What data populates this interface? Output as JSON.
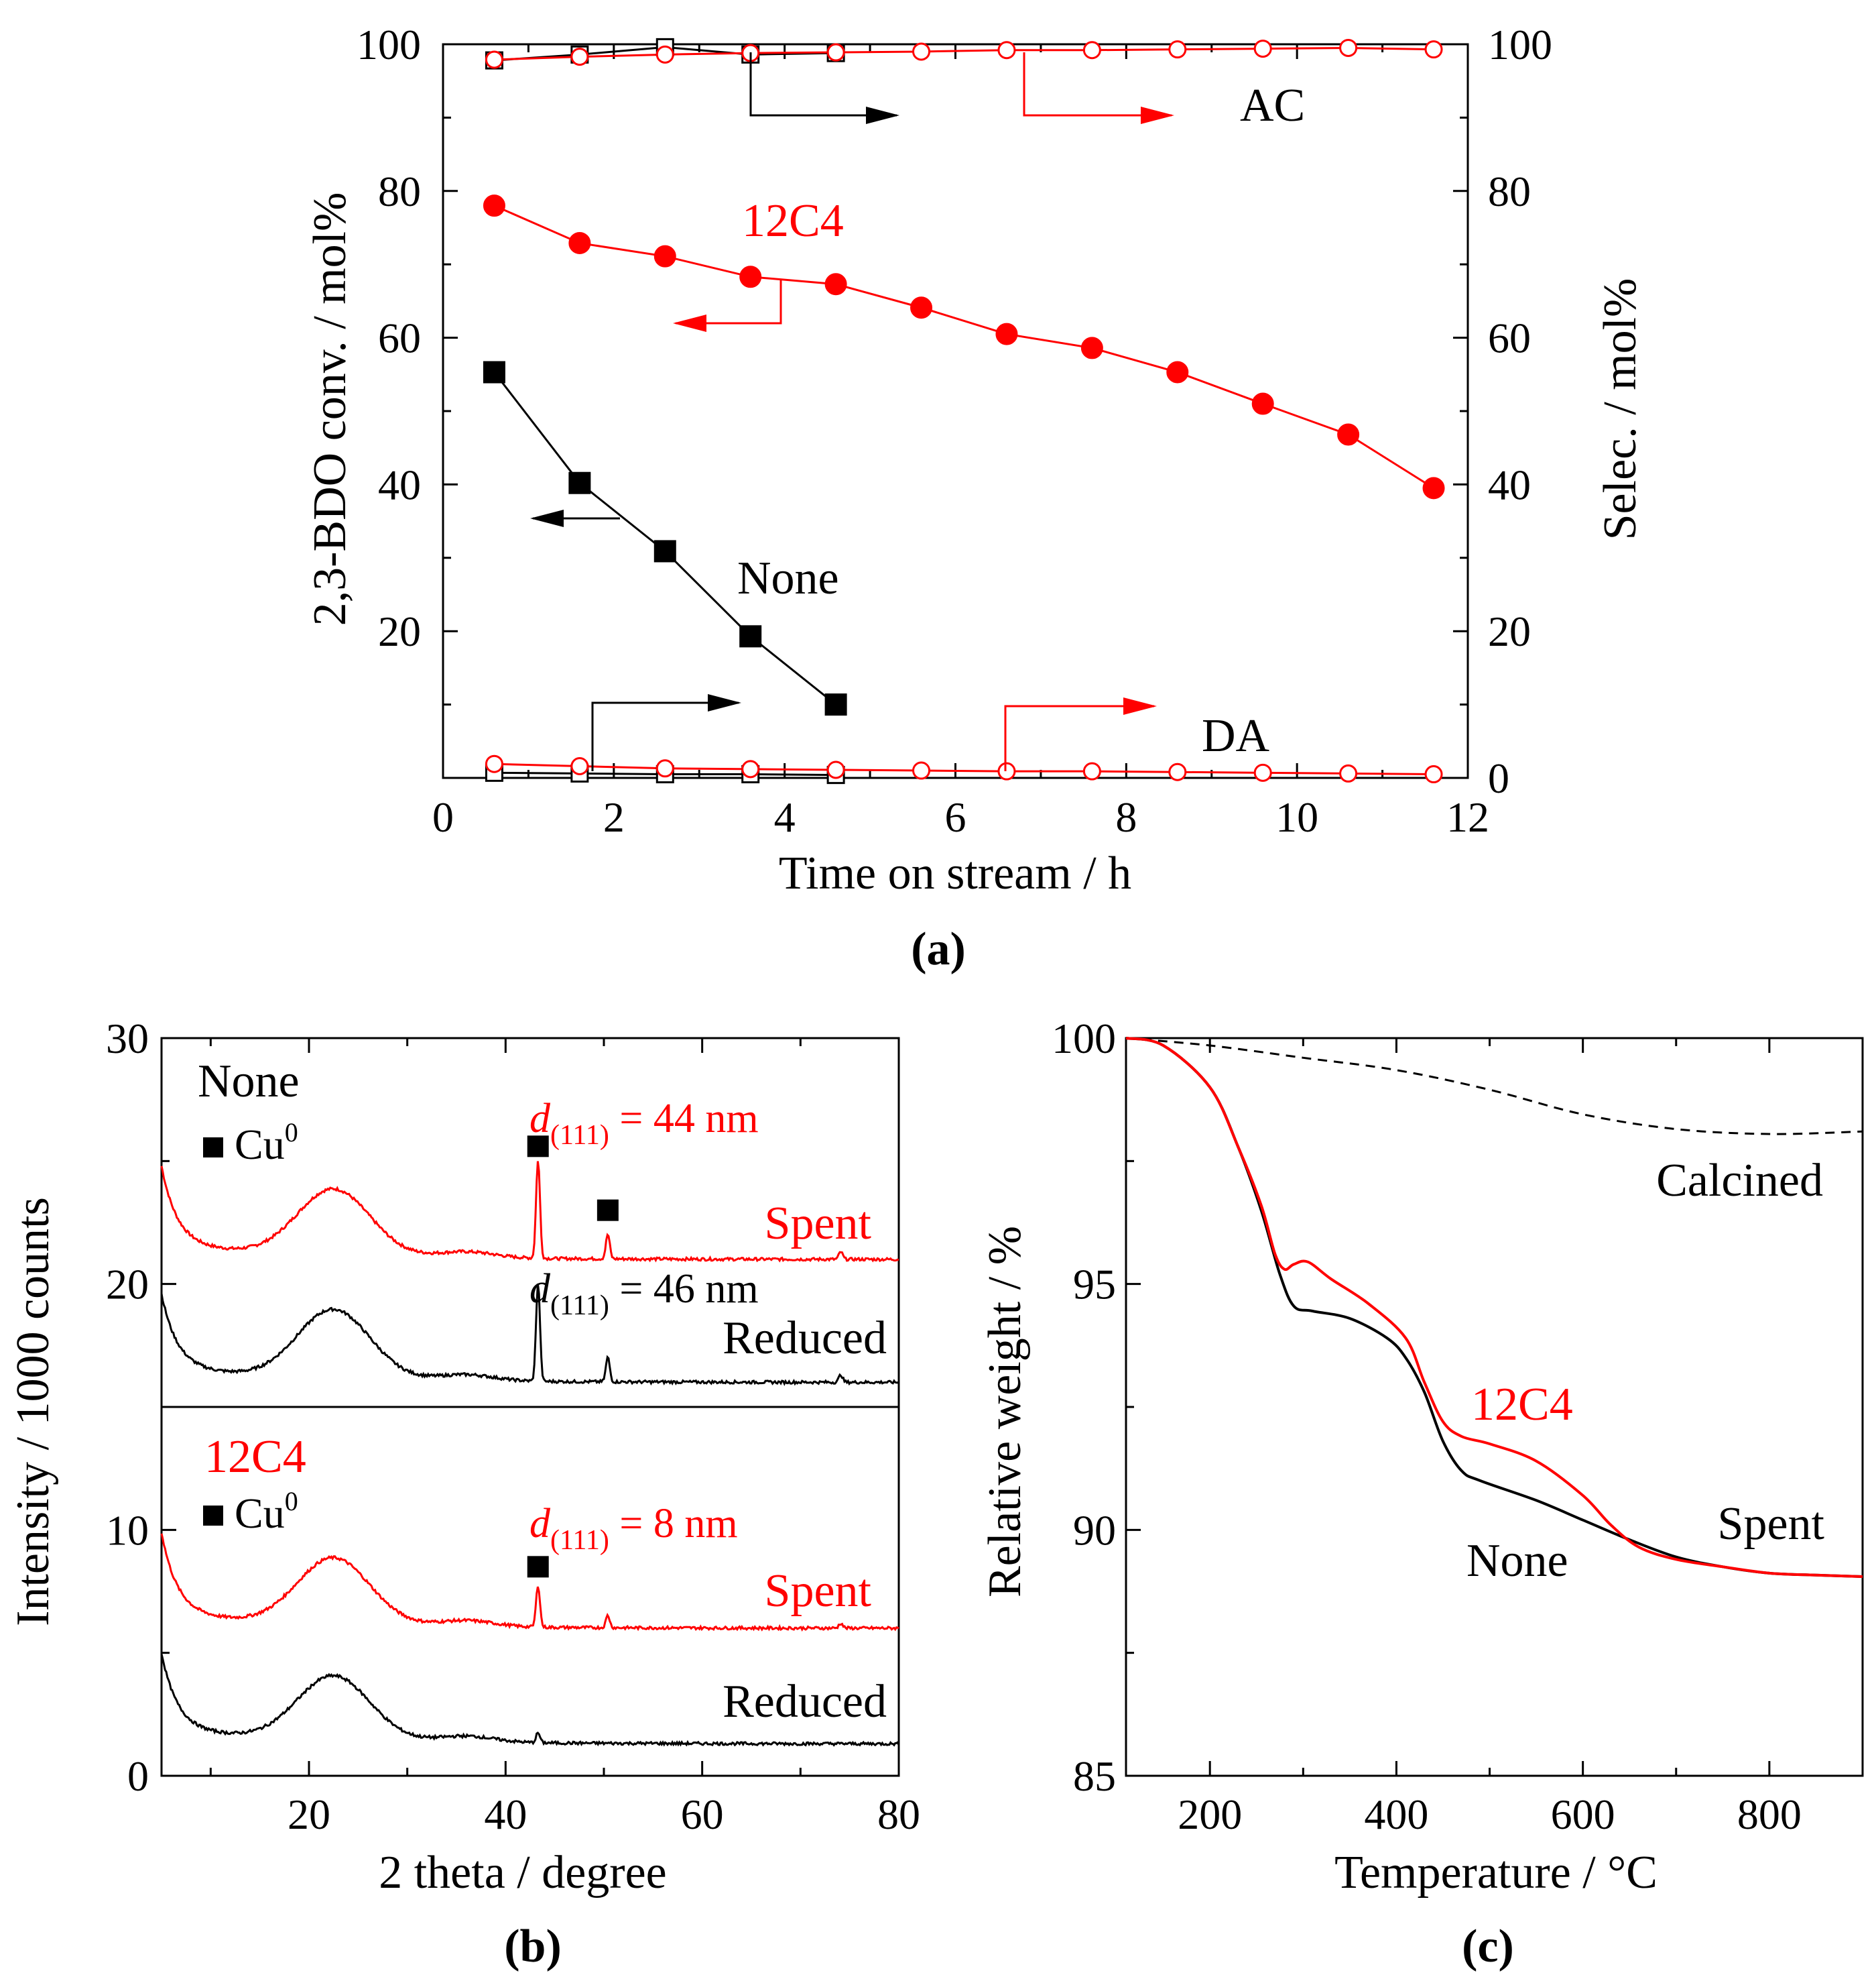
{
  "colors": {
    "black": "#000000",
    "red": "#ff0000"
  },
  "chart_data": [
    {
      "id": "a",
      "type": "line",
      "caption": "(a)",
      "xlabel": "Time on stream / h",
      "ylabel": "2,3-BDO conv. / mol%",
      "y2label": "Selec. / mol%",
      "xlim": [
        0,
        12
      ],
      "ylim": [
        0,
        100
      ],
      "y2lim": [
        0,
        100
      ],
      "xticks": [
        "0",
        "2",
        "4",
        "6",
        "8",
        "10",
        "12"
      ],
      "yticks": [
        "20",
        "40",
        "60",
        "80",
        "100"
      ],
      "y2ticks": [
        "0",
        "20",
        "40",
        "60",
        "80",
        "100"
      ],
      "labels": {
        "ac": "AC",
        "c12": "12C4",
        "none": "None",
        "da": "DA"
      },
      "series": [
        {
          "name": "None conversion",
          "color": "#000000",
          "marker": "square-filled",
          "x": [
            0.6,
            1.6,
            2.6,
            3.6,
            4.6
          ],
          "y": [
            55.3,
            40.2,
            30.9,
            19.3,
            10.0
          ]
        },
        {
          "name": "None AC selectivity",
          "color": "#000000",
          "marker": "square-open",
          "x": [
            0.6,
            1.6,
            2.6,
            3.6,
            4.6
          ],
          "y": [
            97.8,
            98.6,
            99.6,
            98.6,
            98.8
          ]
        },
        {
          "name": "None DA selectivity",
          "color": "#000000",
          "marker": "square-open",
          "x": [
            0.6,
            1.6,
            2.6,
            3.6,
            4.6
          ],
          "y": [
            0.7,
            0.6,
            0.5,
            0.5,
            0.4
          ]
        },
        {
          "name": "12C4 conversion",
          "color": "#ff0000",
          "marker": "circle-filled",
          "x": [
            0.6,
            1.6,
            2.6,
            3.6,
            4.6,
            5.6,
            6.6,
            7.6,
            8.6,
            9.6,
            10.6,
            11.6
          ],
          "y": [
            78.0,
            72.9,
            71.1,
            68.3,
            67.3,
            64.1,
            60.5,
            58.6,
            55.3,
            51.0,
            46.8,
            39.5
          ]
        },
        {
          "name": "12C4 AC selectivity",
          "color": "#ff0000",
          "marker": "circle-open",
          "x": [
            0.6,
            1.6,
            2.6,
            3.6,
            4.6,
            5.6,
            6.6,
            7.6,
            8.6,
            9.6,
            10.6,
            11.6
          ],
          "y": [
            97.9,
            98.3,
            98.6,
            98.8,
            98.9,
            99.0,
            99.2,
            99.2,
            99.3,
            99.4,
            99.5,
            99.3
          ]
        },
        {
          "name": "12C4 DA selectivity",
          "color": "#ff0000",
          "marker": "circle-open",
          "x": [
            0.6,
            1.6,
            2.6,
            3.6,
            4.6,
            5.6,
            6.6,
            7.6,
            8.6,
            9.6,
            10.6,
            11.6
          ],
          "y": [
            1.9,
            1.6,
            1.3,
            1.2,
            1.1,
            1.0,
            0.9,
            0.9,
            0.8,
            0.7,
            0.6,
            0.5
          ]
        }
      ]
    },
    {
      "id": "b",
      "type": "line",
      "caption": "(b)",
      "xlabel": "2 theta / degree",
      "ylabel": "Intensity / 1000 counts",
      "xlim": [
        5,
        80
      ],
      "ylim": [
        0,
        30
      ],
      "xticks": [
        "20",
        "40",
        "60",
        "80"
      ],
      "yticks": [
        "0",
        "10",
        "20",
        "30"
      ],
      "labels": {
        "none": "None",
        "c12": "12C4",
        "cu": "Cu",
        "cu_sup": "0",
        "d_italic": "d",
        "d_sub": "(111)",
        "d_none_spent": " = 44 nm",
        "d_none_reduced": " = 46 nm",
        "d_12c4_spent": " = 8 nm",
        "spent": "Spent",
        "reduced": "Reduced"
      },
      "series": [
        {
          "name": "None Spent",
          "color": "#ff0000",
          "baseline": 21.0,
          "start": 24.8,
          "hump": 24.1,
          "peaks": [
            [
              43.3,
              25.0
            ],
            [
              50.4,
              22.0
            ],
            [
              74.1,
              21.3
            ]
          ]
        },
        {
          "name": "None Reduced",
          "color": "#000000",
          "baseline": 16.0,
          "start": 19.6,
          "hump": 19.2,
          "peaks": [
            [
              43.3,
              20.0
            ],
            [
              50.4,
              17.0
            ],
            [
              74.1,
              16.3
            ]
          ]
        },
        {
          "name": "12C4 Spent",
          "color": "#ff0000",
          "baseline": 6.0,
          "start": 9.9,
          "hump": 9.1,
          "peaks": [
            [
              43.3,
              7.7
            ],
            [
              50.4,
              6.5
            ],
            [
              74.1,
              6.2
            ]
          ]
        },
        {
          "name": "12C4 Reduced",
          "color": "#000000",
          "baseline": 1.3,
          "start": 5.0,
          "hump": 4.3,
          "peaks": [
            [
              43.3,
              1.7
            ]
          ]
        }
      ]
    },
    {
      "id": "c",
      "type": "line",
      "caption": "(c)",
      "xlabel": "Temperature / °C",
      "ylabel": "Relative weight / %",
      "xlim": [
        110,
        900
      ],
      "ylim": [
        85,
        100
      ],
      "xticks": [
        "200",
        "400",
        "600",
        "800"
      ],
      "yticks": [
        "85",
        "90",
        "95",
        "100"
      ],
      "labels": {
        "calcined": "Calcined",
        "c12": "12C4",
        "spent": "Spent",
        "none": "None"
      },
      "series": [
        {
          "name": "Calcined",
          "color": "#000000",
          "dash": true,
          "x": [
            110,
            200,
            300,
            400,
            500,
            600,
            700,
            800,
            900
          ],
          "y": [
            100.0,
            99.85,
            99.6,
            99.35,
            98.95,
            98.45,
            98.15,
            98.05,
            98.1
          ]
        },
        {
          "name": "None",
          "color": "#000000",
          "dash": false,
          "x": [
            110,
            150,
            200,
            230,
            255,
            275,
            290,
            310,
            350,
            390,
            410,
            430,
            450,
            470,
            490,
            550,
            600,
            650,
            700,
            750,
            800,
            850,
            900
          ],
          "y": [
            100.0,
            99.85,
            99.0,
            97.8,
            96.5,
            95.2,
            94.55,
            94.45,
            94.3,
            93.9,
            93.5,
            92.8,
            91.8,
            91.2,
            91.0,
            90.6,
            90.2,
            89.8,
            89.45,
            89.25,
            89.12,
            89.08,
            89.05
          ]
        },
        {
          "name": "12C4",
          "color": "#ff0000",
          "dash": false,
          "x": [
            110,
            150,
            200,
            230,
            255,
            270,
            280,
            290,
            305,
            330,
            370,
            410,
            430,
            450,
            470,
            500,
            550,
            600,
            630,
            660,
            700,
            750,
            800,
            850,
            900
          ],
          "y": [
            100.0,
            99.85,
            99.0,
            97.8,
            96.6,
            95.6,
            95.3,
            95.4,
            95.45,
            95.1,
            94.6,
            93.9,
            93.0,
            92.2,
            91.9,
            91.75,
            91.4,
            90.7,
            90.1,
            89.65,
            89.4,
            89.25,
            89.12,
            89.08,
            89.05
          ]
        }
      ]
    }
  ]
}
